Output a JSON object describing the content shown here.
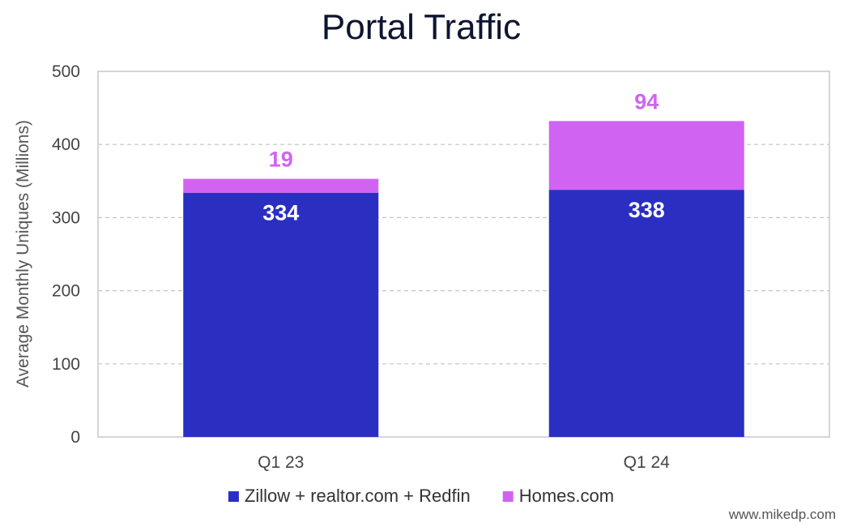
{
  "chart_data": {
    "type": "bar",
    "stacked": true,
    "title": "Portal Traffic",
    "xlabel": "",
    "ylabel": "Average Monthly Uniques (Millions)",
    "categories": [
      "Q1 23",
      "Q1 24"
    ],
    "ylim": [
      0,
      500
    ],
    "yticks": [
      0,
      100,
      200,
      300,
      400,
      500
    ],
    "grid": true,
    "legend_position": "bottom",
    "series": [
      {
        "name": "Zillow + realtor.com + Redfin",
        "values": [
          334,
          338
        ],
        "color": "#2a2fc2",
        "label_color": "#ffffff",
        "label_position": "inside-top"
      },
      {
        "name": "Homes.com",
        "values": [
          19,
          94
        ],
        "color": "#d163f2",
        "label_color": "#d163f2",
        "label_position": "above"
      }
    ]
  },
  "credit": "www.mikedp.com"
}
